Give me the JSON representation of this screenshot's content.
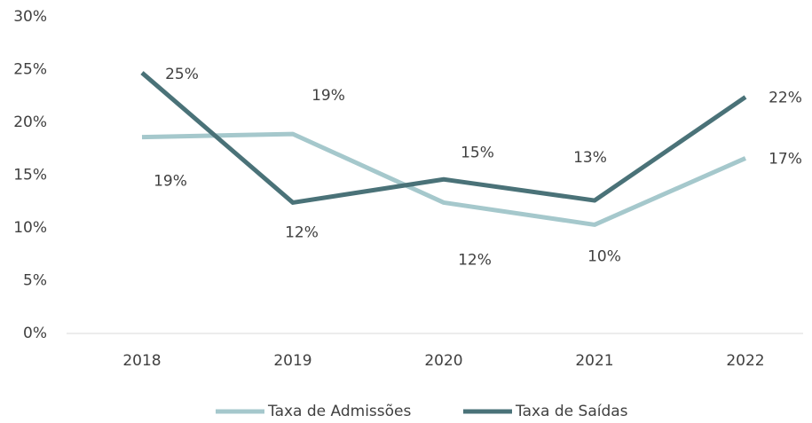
{
  "chart_data": {
    "type": "line",
    "categories": [
      "2018",
      "2019",
      "2020",
      "2021",
      "2022"
    ],
    "series": [
      {
        "name": "Taxa de Admissões",
        "color": "#a5c8cc",
        "values": [
          18.6,
          18.9,
          12.4,
          10.3,
          16.6
        ],
        "value_labels": [
          "19%",
          "19%",
          "12%",
          "10%",
          "17%"
        ]
      },
      {
        "name": "Taxa de Saídas",
        "color": "#4a7278",
        "values": [
          24.7,
          12.4,
          14.6,
          12.6,
          22.4
        ],
        "value_labels": [
          "25%",
          "12%",
          "15%",
          "13%",
          "22%"
        ]
      }
    ],
    "ylim": [
      0,
      30
    ],
    "yticks": [
      {
        "value": 0,
        "label": "0%"
      },
      {
        "value": 5,
        "label": "5%"
      },
      {
        "value": 10,
        "label": "10%"
      },
      {
        "value": 15,
        "label": "15%"
      },
      {
        "value": 20,
        "label": "20%"
      },
      {
        "value": 25,
        "label": "25%"
      },
      {
        "value": 30,
        "label": "30%"
      }
    ],
    "legend": "bottom"
  }
}
